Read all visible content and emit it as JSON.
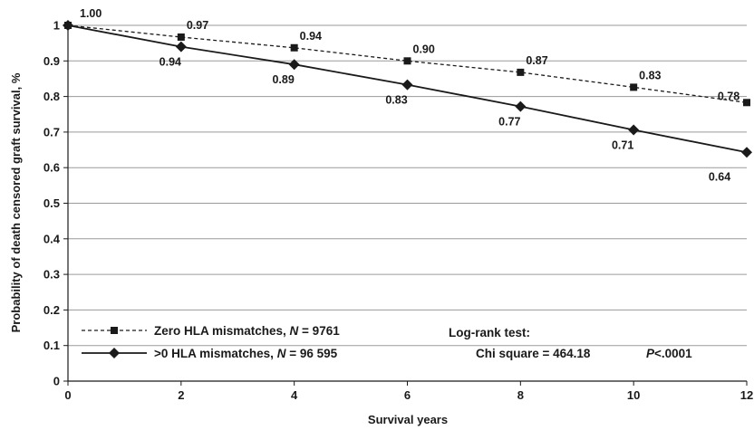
{
  "chart_data": {
    "type": "line",
    "x": [
      0,
      2,
      4,
      6,
      8,
      10,
      12
    ],
    "xlabel": "Survival years",
    "ylabel": "Probability of death censored graft survival, %",
    "xlim": [
      0,
      12
    ],
    "ylim": [
      0,
      1
    ],
    "x_ticks": [
      "0",
      "2",
      "4",
      "6",
      "8",
      "10",
      "12"
    ],
    "y_ticks": [
      "0",
      "0.1",
      "0.2",
      "0.3",
      "0.4",
      "0.5",
      "0.6",
      "0.7",
      "0.8",
      "0.9",
      "1"
    ],
    "grid": "horizontal",
    "legend_position": "bottom-left",
    "series": [
      {
        "name": "Zero HLA mismatches, N = 9761",
        "name_prefix": "Zero HLA mismatches, ",
        "name_n": "N",
        "name_suffix": " = 9761",
        "marker": "square",
        "line_style": "dashed",
        "color": "#1a1a1a",
        "values": [
          1.0,
          0.967,
          0.937,
          0.9,
          0.868,
          0.826,
          0.783
        ],
        "labels": [
          "1.00",
          "0.97",
          "0.94",
          "0.90",
          "0.87",
          "0.83",
          "0.78"
        ]
      },
      {
        "name": ">0 HLA mismatches, N = 96 595",
        "name_prefix": ">0 HLA mismatches, ",
        "name_n": "N",
        "name_suffix": " = 96 595",
        "marker": "diamond",
        "line_style": "solid",
        "color": "#1a1a1a",
        "values": [
          1.0,
          0.94,
          0.89,
          0.833,
          0.772,
          0.706,
          0.643
        ],
        "labels": [
          "",
          "0.94",
          "0.89",
          "0.83",
          "0.77",
          "0.71",
          "0.64"
        ]
      }
    ],
    "annotation": {
      "title": "Log-rank test:",
      "stat": "Chi square = 464.18",
      "p_symbol": "P",
      "p_value": "<.0001"
    }
  }
}
